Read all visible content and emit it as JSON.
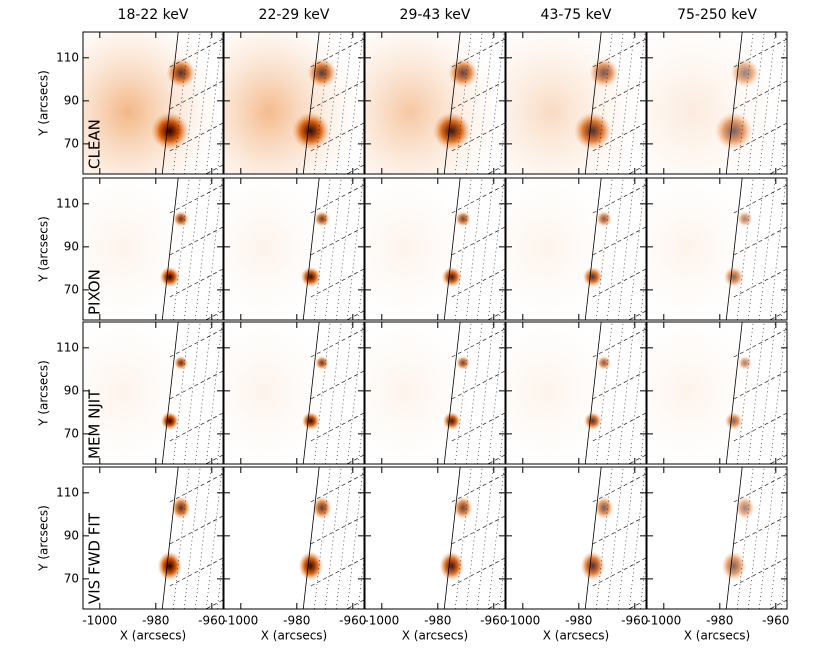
{
  "chart_data": {
    "type": "image_grid",
    "columns": [
      "18-22 keV",
      "22-29 keV",
      "29-43 keV",
      "43-75 keV",
      "75-250 keV"
    ],
    "rows": [
      "CLEAN",
      "PIXON",
      "MEM NJIT",
      "VIS FWD FIT"
    ],
    "xlabel": "X (arcsecs)",
    "ylabel": "Y (arcsecs)",
    "xlim": [
      -1006,
      -956
    ],
    "ylim": [
      56,
      122
    ],
    "xticks": [
      -1000,
      -980,
      -960
    ],
    "yticks": [
      70,
      90,
      110
    ],
    "sources": {
      "x": [
        -971,
        -975
      ],
      "y": [
        103,
        76
      ]
    },
    "color": "#d9600a"
  }
}
